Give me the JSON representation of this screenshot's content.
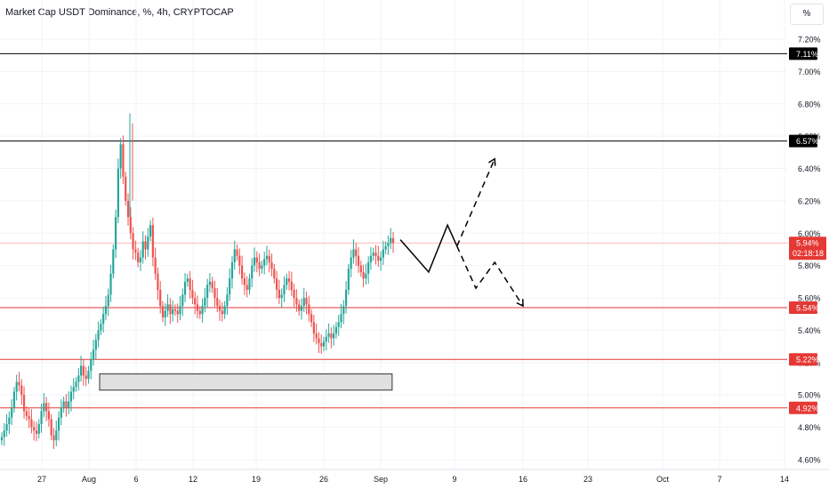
{
  "title": "Market Cap USDT Dominance, %, 4h, CRYPTOCAP",
  "scale_button": "%",
  "colors": {
    "up": "#26a69a",
    "down": "#ef5350",
    "red_line": "#e53935",
    "black_line": "#000000",
    "box_fill": "#e0e0e0"
  },
  "chart_data": {
    "type": "candlestick",
    "title": "Market Cap USDT Dominance, %, 4h, CRYPTOCAP",
    "y_unit": "%",
    "ylim": [
      4.55,
      7.35
    ],
    "y_ticks": [
      "7.20%",
      "7.00%",
      "6.80%",
      "6.60%",
      "6.40%",
      "6.20%",
      "6.00%",
      "5.80%",
      "5.60%",
      "5.40%",
      "5.20%",
      "5.00%",
      "4.80%",
      "4.60%"
    ],
    "x_ticks": [
      "27",
      "Aug",
      "6",
      "12",
      "19",
      "26",
      "Sep",
      "9",
      "16",
      "23",
      "Oct",
      "7",
      "14"
    ],
    "current_price": {
      "value": 5.94,
      "label": "5.94%",
      "countdown": "02:18:18"
    },
    "horizontal_levels": [
      {
        "value": 7.11,
        "label": "7.11%",
        "color": "black"
      },
      {
        "value": 6.57,
        "label": "6.57%",
        "color": "black"
      },
      {
        "value": 5.54,
        "label": "5.54%",
        "color": "red"
      },
      {
        "value": 5.22,
        "label": "5.22%",
        "color": "red"
      },
      {
        "value": 4.92,
        "label": "4.92%",
        "color": "red"
      }
    ],
    "zone": {
      "from_date": "Aug 1",
      "to_date": "Sep 1",
      "low": 5.03,
      "high": 5.13
    },
    "projection_solid": [
      {
        "date": "Sep 3",
        "value": 5.96
      },
      {
        "date": "Sep 6",
        "value": 5.76
      },
      {
        "date": "Sep 8",
        "value": 6.05
      },
      {
        "date": "Sep 9",
        "value": 5.92
      }
    ],
    "projection_up": [
      {
        "date": "Sep 9",
        "value": 5.92
      },
      {
        "date": "Sep 13",
        "value": 6.46
      }
    ],
    "projection_down": [
      {
        "date": "Sep 9",
        "value": 5.92
      },
      {
        "date": "Sep 11",
        "value": 5.66
      },
      {
        "date": "Sep 13",
        "value": 5.82
      },
      {
        "date": "Sep 16",
        "value": 5.55
      }
    ],
    "close_series": [
      4.74,
      4.78,
      4.82,
      4.86,
      4.92,
      5.02,
      5.08,
      5.06,
      5.0,
      4.9,
      4.87,
      4.85,
      4.8,
      4.78,
      4.76,
      4.82,
      4.9,
      4.95,
      4.9,
      4.85,
      4.75,
      4.72,
      4.78,
      4.86,
      4.92,
      4.96,
      4.92,
      4.96,
      5.02,
      5.05,
      5.08,
      5.12,
      5.18,
      5.12,
      5.1,
      5.15,
      5.22,
      5.28,
      5.34,
      5.4,
      5.44,
      5.5,
      5.55,
      5.62,
      5.75,
      5.9,
      6.1,
      6.4,
      6.55,
      6.35,
      6.2,
      6.1,
      6.0,
      5.9,
      5.88,
      5.82,
      5.85,
      5.95,
      5.9,
      5.98,
      6.05,
      5.85,
      5.75,
      5.65,
      5.55,
      5.48,
      5.52,
      5.56,
      5.5,
      5.53,
      5.52,
      5.5,
      5.55,
      5.62,
      5.7,
      5.72,
      5.65,
      5.6,
      5.56,
      5.52,
      5.5,
      5.55,
      5.6,
      5.68,
      5.7,
      5.66,
      5.6,
      5.55,
      5.52,
      5.5,
      5.55,
      5.62,
      5.72,
      5.82,
      5.9,
      5.86,
      5.8,
      5.72,
      5.68,
      5.65,
      5.72,
      5.8,
      5.85,
      5.82,
      5.78,
      5.8,
      5.84,
      5.86,
      5.82,
      5.78,
      5.72,
      5.65,
      5.6,
      5.62,
      5.68,
      5.72,
      5.7,
      5.65,
      5.6,
      5.56,
      5.52,
      5.55,
      5.6,
      5.56,
      5.5,
      5.45,
      5.38,
      5.35,
      5.32,
      5.3,
      5.33,
      5.36,
      5.38,
      5.35,
      5.38,
      5.42,
      5.45,
      5.5,
      5.55,
      5.65,
      5.78,
      5.85,
      5.9,
      5.86,
      5.8,
      5.76,
      5.72,
      5.75,
      5.82,
      5.86,
      5.88,
      5.86,
      5.83,
      5.85,
      5.9,
      5.92,
      5.94,
      5.97,
      5.94
    ]
  }
}
